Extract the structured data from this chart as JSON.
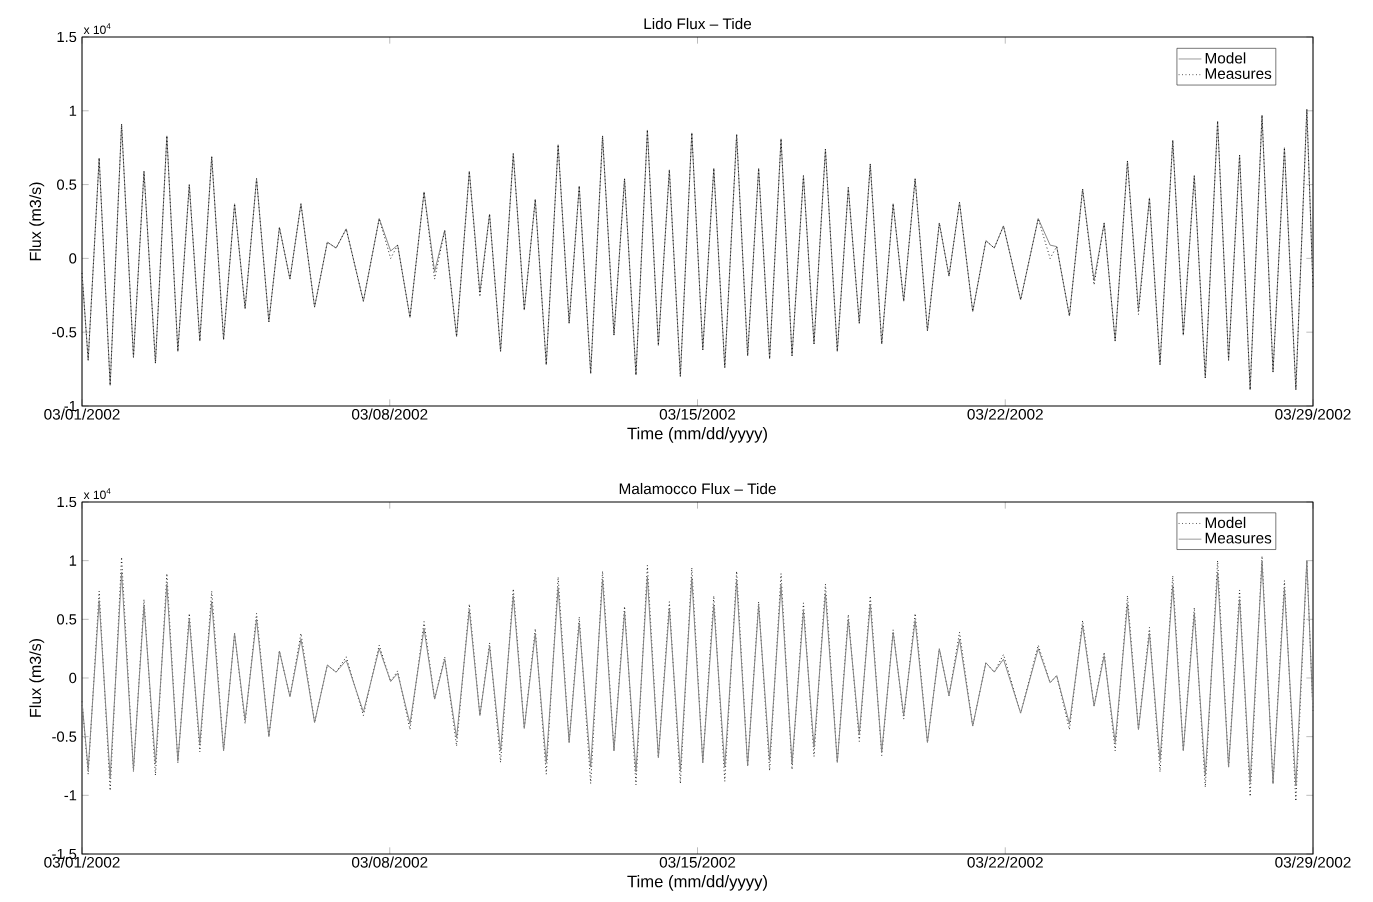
{
  "chart_data": [
    {
      "type": "line",
      "title": "Lido Flux – Tide",
      "xlabel": "Time (mm/dd/yyyy)",
      "ylabel": "Flux (m3/s)",
      "annotations": [
        "x 10$^{4}$"
      ],
      "x": [
        "2002-03-01T00:00",
        "2002-03-01T03:22",
        "2002-03-01T09:22",
        "2002-03-01T15:22",
        "2002-03-01T21:36",
        "2002-03-02T04:05",
        "2002-03-02T09:50",
        "2002-03-02T16:05",
        "2002-03-02T22:19",
        "2002-03-03T04:19",
        "2002-03-03T10:34",
        "2002-03-03T16:19",
        "2002-03-03T22:48",
        "2002-03-04T05:17",
        "2002-03-04T11:17",
        "2002-03-04T17:02",
        "2002-03-04T23:17",
        "2002-03-05T06:00",
        "2002-03-05T11:46",
        "2002-03-05T17:31",
        "2002-03-05T23:31",
        "2002-03-06T06:58",
        "2002-03-06T13:55",
        "2002-03-06T18:43",
        "2002-03-07T00:14",
        "2002-03-07T09:36",
        "2002-03-07T18:14",
        "2002-03-08T00:29",
        "2002-03-08T04:19",
        "2002-03-08T11:02",
        "2002-03-08T18:43",
        "2002-03-09T00:29",
        "2002-03-09T06:00",
        "2002-03-09T12:29",
        "2002-03-09T19:26",
        "2002-03-10T01:12",
        "2002-03-10T06:29",
        "2002-03-10T12:29",
        "2002-03-10T19:26",
        "2002-03-11T01:26",
        "2002-03-11T07:26",
        "2002-03-11T13:26",
        "2002-03-11T19:55",
        "2002-03-12T01:55",
        "2002-03-12T07:26",
        "2002-03-12T13:41",
        "2002-03-12T20:10",
        "2002-03-13T02:24",
        "2002-03-13T08:10",
        "2002-03-13T14:24",
        "2002-03-13T20:38",
        "2002-03-14T02:38",
        "2002-03-14T08:38",
        "2002-03-14T14:38",
        "2002-03-14T20:53",
        "2002-03-15T02:53",
        "2002-03-15T08:53",
        "2002-03-15T14:53",
        "2002-03-15T21:22",
        "2002-03-16T03:22",
        "2002-03-16T09:22",
        "2002-03-16T15:22",
        "2002-03-16T21:36",
        "2002-03-17T03:36",
        "2002-03-17T09:50",
        "2002-03-17T15:36",
        "2002-03-17T21:50",
        "2002-03-18T04:19",
        "2002-03-18T10:19",
        "2002-03-18T16:19",
        "2002-03-18T22:19",
        "2002-03-19T04:34",
        "2002-03-19T10:48",
        "2002-03-19T16:34",
        "2002-03-19T22:48",
        "2002-03-20T05:31",
        "2002-03-20T12:00",
        "2002-03-20T17:17",
        "2002-03-20T23:02",
        "2002-03-21T06:14",
        "2002-03-21T13:26",
        "2002-03-21T18:00",
        "2002-03-21T23:02",
        "2002-03-22T08:24",
        "2002-03-22T18:00",
        "2002-03-23T00:29",
        "2002-03-23T04:05",
        "2002-03-23T11:02",
        "2002-03-23T18:14",
        "2002-03-24T00:29",
        "2002-03-24T06:00",
        "2002-03-24T12:00",
        "2002-03-24T18:43",
        "2002-03-25T00:43",
        "2002-03-25T06:43",
        "2002-03-25T12:29",
        "2002-03-25T19:26",
        "2002-03-26T01:12",
        "2002-03-26T07:12",
        "2002-03-26T13:12",
        "2002-03-26T19:55",
        "2002-03-27T01:55",
        "2002-03-27T07:55",
        "2002-03-27T13:41",
        "2002-03-27T20:10",
        "2002-03-28T02:10",
        "2002-03-28T08:24",
        "2002-03-28T14:38",
        "2002-03-28T20:38",
        "2002-03-29T00:00"
      ],
      "series": [
        {
          "name": "Model",
          "color": "#808080",
          "line_style": "solid",
          "values": [
            -0.1,
            -0.69,
            0.68,
            -0.86,
            0.91,
            -0.67,
            0.59,
            -0.71,
            0.83,
            -0.63,
            0.5,
            -0.56,
            0.69,
            -0.55,
            0.37,
            -0.34,
            0.54,
            -0.43,
            0.21,
            -0.14,
            0.37,
            -0.33,
            0.11,
            0.07,
            0.2,
            -0.29,
            0.27,
            0.05,
            0.09,
            -0.4,
            0.45,
            -0.09,
            0.19,
            -0.53,
            0.59,
            -0.23,
            0.3,
            -0.63,
            0.71,
            -0.35,
            0.4,
            -0.72,
            0.77,
            -0.44,
            0.49,
            -0.78,
            0.83,
            -0.52,
            0.54,
            -0.79,
            0.87,
            -0.59,
            0.6,
            -0.8,
            0.85,
            -0.62,
            0.61,
            -0.74,
            0.84,
            -0.66,
            0.61,
            -0.68,
            0.81,
            -0.66,
            0.56,
            -0.58,
            0.74,
            -0.63,
            0.48,
            -0.44,
            0.64,
            -0.58,
            0.37,
            -0.29,
            0.54,
            -0.49,
            0.24,
            -0.12,
            0.38,
            -0.36,
            0.12,
            0.07,
            0.22,
            -0.28,
            0.27,
            0.09,
            0.08,
            -0.39,
            0.47,
            -0.15,
            0.24,
            -0.56,
            0.66,
            -0.35,
            0.41,
            -0.72,
            0.8,
            -0.52,
            0.56,
            -0.81,
            0.93,
            -0.69,
            0.7,
            -0.89,
            0.97,
            -0.77,
            0.75,
            -0.89,
            1.01,
            -0.2
          ]
        },
        {
          "name": "Measures",
          "color": "#000000",
          "line_style": "dotted",
          "values": [
            -0.1,
            -0.69,
            0.68,
            -0.86,
            0.91,
            -0.67,
            0.59,
            -0.71,
            0.83,
            -0.63,
            0.5,
            -0.56,
            0.69,
            -0.55,
            0.37,
            -0.34,
            0.54,
            -0.43,
            0.21,
            -0.14,
            0.37,
            -0.33,
            0.11,
            0.07,
            0.2,
            -0.29,
            0.27,
            0,
            0.09,
            -0.4,
            0.45,
            -0.14,
            0.19,
            -0.53,
            0.59,
            -0.26,
            0.3,
            -0.63,
            0.71,
            -0.35,
            0.4,
            -0.72,
            0.77,
            -0.44,
            0.49,
            -0.78,
            0.83,
            -0.52,
            0.54,
            -0.79,
            0.87,
            -0.59,
            0.6,
            -0.8,
            0.85,
            -0.62,
            0.61,
            -0.74,
            0.84,
            -0.66,
            0.61,
            -0.68,
            0.81,
            -0.66,
            0.56,
            -0.58,
            0.74,
            -0.63,
            0.48,
            -0.44,
            0.64,
            -0.58,
            0.37,
            -0.29,
            0.54,
            -0.49,
            0.24,
            -0.12,
            0.38,
            -0.36,
            0.12,
            0.07,
            0.22,
            -0.28,
            0.27,
            0,
            0.08,
            -0.39,
            0.47,
            -0.18,
            0.24,
            -0.56,
            0.66,
            -0.38,
            0.41,
            -0.72,
            0.8,
            -0.52,
            0.56,
            -0.81,
            0.93,
            -0.69,
            0.7,
            -0.89,
            0.97,
            -0.77,
            0.75,
            -0.89,
            1.01,
            -0.2
          ]
        }
      ],
      "xlim": [
        "2002-03-01",
        "2002-03-29"
      ],
      "xticks": [
        {
          "value": "2002-03-01",
          "label": "03/01/2002"
        },
        {
          "value": "2002-03-08",
          "label": "03/08/2002"
        },
        {
          "value": "2002-03-15",
          "label": "03/15/2002"
        },
        {
          "value": "2002-03-22",
          "label": "03/22/2002"
        },
        {
          "value": "2002-03-29",
          "label": "03/29/2002"
        }
      ],
      "ylim": [
        -1,
        1.5
      ],
      "yticks": [
        -1,
        -0.5,
        0,
        0.5,
        1,
        1.5
      ],
      "legend": "top right",
      "marker": "none"
    },
    {
      "type": "line",
      "title": "Malamocco Flux – Tide",
      "xlabel": "Time (mm/dd/yyyy)",
      "ylabel": "Flux (m3/s)",
      "annotations": [
        "x 10$^{4}$"
      ],
      "x": [
        "2002-03-01T00:00",
        "2002-03-01T03:22",
        "2002-03-01T09:22",
        "2002-03-01T15:22",
        "2002-03-01T21:36",
        "2002-03-02T04:05",
        "2002-03-02T09:50",
        "2002-03-02T16:05",
        "2002-03-02T22:19",
        "2002-03-03T04:19",
        "2002-03-03T10:34",
        "2002-03-03T16:19",
        "2002-03-03T22:48",
        "2002-03-04T05:17",
        "2002-03-04T11:17",
        "2002-03-04T17:02",
        "2002-03-04T23:17",
        "2002-03-05T06:00",
        "2002-03-05T11:46",
        "2002-03-05T17:31",
        "2002-03-05T23:31",
        "2002-03-06T06:58",
        "2002-03-06T13:55",
        "2002-03-06T18:43",
        "2002-03-07T00:14",
        "2002-03-07T09:36",
        "2002-03-07T18:14",
        "2002-03-08T00:29",
        "2002-03-08T04:19",
        "2002-03-08T11:02",
        "2002-03-08T18:43",
        "2002-03-09T00:29",
        "2002-03-09T06:00",
        "2002-03-09T12:29",
        "2002-03-09T19:26",
        "2002-03-10T01:12",
        "2002-03-10T06:29",
        "2002-03-10T12:29",
        "2002-03-10T19:26",
        "2002-03-11T01:26",
        "2002-03-11T07:26",
        "2002-03-11T13:26",
        "2002-03-11T19:55",
        "2002-03-12T01:55",
        "2002-03-12T07:26",
        "2002-03-12T13:41",
        "2002-03-12T20:10",
        "2002-03-13T02:24",
        "2002-03-13T08:10",
        "2002-03-13T14:24",
        "2002-03-13T20:38",
        "2002-03-14T02:38",
        "2002-03-14T08:38",
        "2002-03-14T14:38",
        "2002-03-14T20:53",
        "2002-03-15T02:53",
        "2002-03-15T08:53",
        "2002-03-15T14:53",
        "2002-03-15T21:22",
        "2002-03-16T03:22",
        "2002-03-16T09:22",
        "2002-03-16T15:22",
        "2002-03-16T21:36",
        "2002-03-17T03:36",
        "2002-03-17T09:50",
        "2002-03-17T15:36",
        "2002-03-17T21:50",
        "2002-03-18T04:19",
        "2002-03-18T10:19",
        "2002-03-18T16:19",
        "2002-03-18T22:19",
        "2002-03-19T04:34",
        "2002-03-19T10:48",
        "2002-03-19T16:34",
        "2002-03-19T22:48",
        "2002-03-20T05:31",
        "2002-03-20T12:00",
        "2002-03-20T17:17",
        "2002-03-20T23:02",
        "2002-03-21T06:14",
        "2002-03-21T13:26",
        "2002-03-21T18:00",
        "2002-03-21T23:02",
        "2002-03-22T08:24",
        "2002-03-22T18:00",
        "2002-03-23T00:29",
        "2002-03-23T04:05",
        "2002-03-23T11:02",
        "2002-03-23T18:14",
        "2002-03-24T00:29",
        "2002-03-24T06:00",
        "2002-03-24T12:00",
        "2002-03-24T18:43",
        "2002-03-25T00:43",
        "2002-03-25T06:43",
        "2002-03-25T12:29",
        "2002-03-25T19:26",
        "2002-03-26T01:12",
        "2002-03-26T07:12",
        "2002-03-26T13:12",
        "2002-03-26T19:55",
        "2002-03-27T01:55",
        "2002-03-27T07:55",
        "2002-03-27T13:41",
        "2002-03-27T20:10",
        "2002-03-28T02:10",
        "2002-03-28T08:24",
        "2002-03-28T14:38",
        "2002-03-28T20:38",
        "2002-03-29T00:00"
      ],
      "series": [
        {
          "name": "Model",
          "color": "#000000",
          "line_style": "dotted",
          "values": [
            -0.2,
            -0.82,
            0.74,
            -0.96,
            1.03,
            -0.8,
            0.67,
            -0.83,
            0.89,
            -0.72,
            0.55,
            -0.63,
            0.74,
            -0.62,
            0.38,
            -0.39,
            0.55,
            -0.5,
            0.23,
            -0.16,
            0.38,
            -0.38,
            0.11,
            0.05,
            0.18,
            -0.32,
            0.28,
            -0.03,
            0.06,
            -0.44,
            0.48,
            -0.18,
            0.18,
            -0.58,
            0.63,
            -0.32,
            0.3,
            -0.72,
            0.76,
            -0.43,
            0.42,
            -0.82,
            0.86,
            -0.55,
            0.52,
            -0.9,
            0.91,
            -0.62,
            0.61,
            -0.91,
            0.96,
            -0.68,
            0.65,
            -0.9,
            0.94,
            -0.72,
            0.7,
            -0.88,
            0.91,
            -0.75,
            0.65,
            -0.79,
            0.89,
            -0.78,
            0.64,
            -0.67,
            0.8,
            -0.72,
            0.54,
            -0.54,
            0.7,
            -0.66,
            0.41,
            -0.35,
            0.55,
            -0.55,
            0.25,
            -0.15,
            0.39,
            -0.41,
            0.13,
            0.05,
            0.2,
            -0.3,
            0.28,
            -0.04,
            0.02,
            -0.44,
            0.49,
            -0.24,
            0.22,
            -0.62,
            0.7,
            -0.44,
            0.43,
            -0.8,
            0.87,
            -0.62,
            0.6,
            -0.93,
            1.0,
            -0.76,
            0.75,
            -1.01,
            1.04,
            -0.9,
            0.83,
            -1.05,
            1.0,
            -0.3
          ]
        },
        {
          "name": "Measures",
          "color": "#808080",
          "line_style": "solid",
          "values": [
            -0.2,
            -0.78,
            0.66,
            -0.85,
            0.9,
            -0.78,
            0.62,
            -0.73,
            0.8,
            -0.71,
            0.5,
            -0.56,
            0.65,
            -0.62,
            0.38,
            -0.36,
            0.5,
            -0.5,
            0.23,
            -0.16,
            0.33,
            -0.38,
            0.11,
            0.05,
            0.15,
            -0.29,
            0.25,
            -0.03,
            0.04,
            -0.39,
            0.42,
            -0.18,
            0.16,
            -0.51,
            0.58,
            -0.32,
            0.27,
            -0.62,
            0.7,
            -0.43,
            0.38,
            -0.72,
            0.77,
            -0.55,
            0.47,
            -0.76,
            0.84,
            -0.62,
            0.56,
            -0.8,
            0.86,
            -0.68,
            0.59,
            -0.79,
            0.85,
            -0.72,
            0.62,
            -0.76,
            0.83,
            -0.75,
            0.62,
            -0.7,
            0.79,
            -0.73,
            0.57,
            -0.59,
            0.72,
            -0.72,
            0.5,
            -0.48,
            0.63,
            -0.63,
            0.39,
            -0.32,
            0.49,
            -0.55,
            0.25,
            -0.15,
            0.33,
            -0.41,
            0.13,
            0.05,
            0.16,
            -0.3,
            0.25,
            -0.04,
            0.02,
            -0.39,
            0.45,
            -0.24,
            0.19,
            -0.55,
            0.63,
            -0.44,
            0.38,
            -0.7,
            0.79,
            -0.62,
            0.55,
            -0.83,
            0.9,
            -0.76,
            0.67,
            -0.89,
            0.99,
            -0.9,
            0.76,
            -0.92,
            1.0,
            -0.3
          ]
        }
      ],
      "xlim": [
        "2002-03-01",
        "2002-03-29"
      ],
      "xticks": [
        {
          "value": "2002-03-01",
          "label": "03/01/2002"
        },
        {
          "value": "2002-03-08",
          "label": "03/08/2002"
        },
        {
          "value": "2002-03-15",
          "label": "03/15/2002"
        },
        {
          "value": "2002-03-22",
          "label": "03/22/2002"
        },
        {
          "value": "2002-03-29",
          "label": "03/29/2002"
        }
      ],
      "ylim": [
        -1.5,
        1.5
      ],
      "yticks": [
        -1.5,
        -1,
        -0.5,
        0,
        0.5,
        1,
        1.5
      ],
      "legend": "top right",
      "marker": "none"
    }
  ]
}
